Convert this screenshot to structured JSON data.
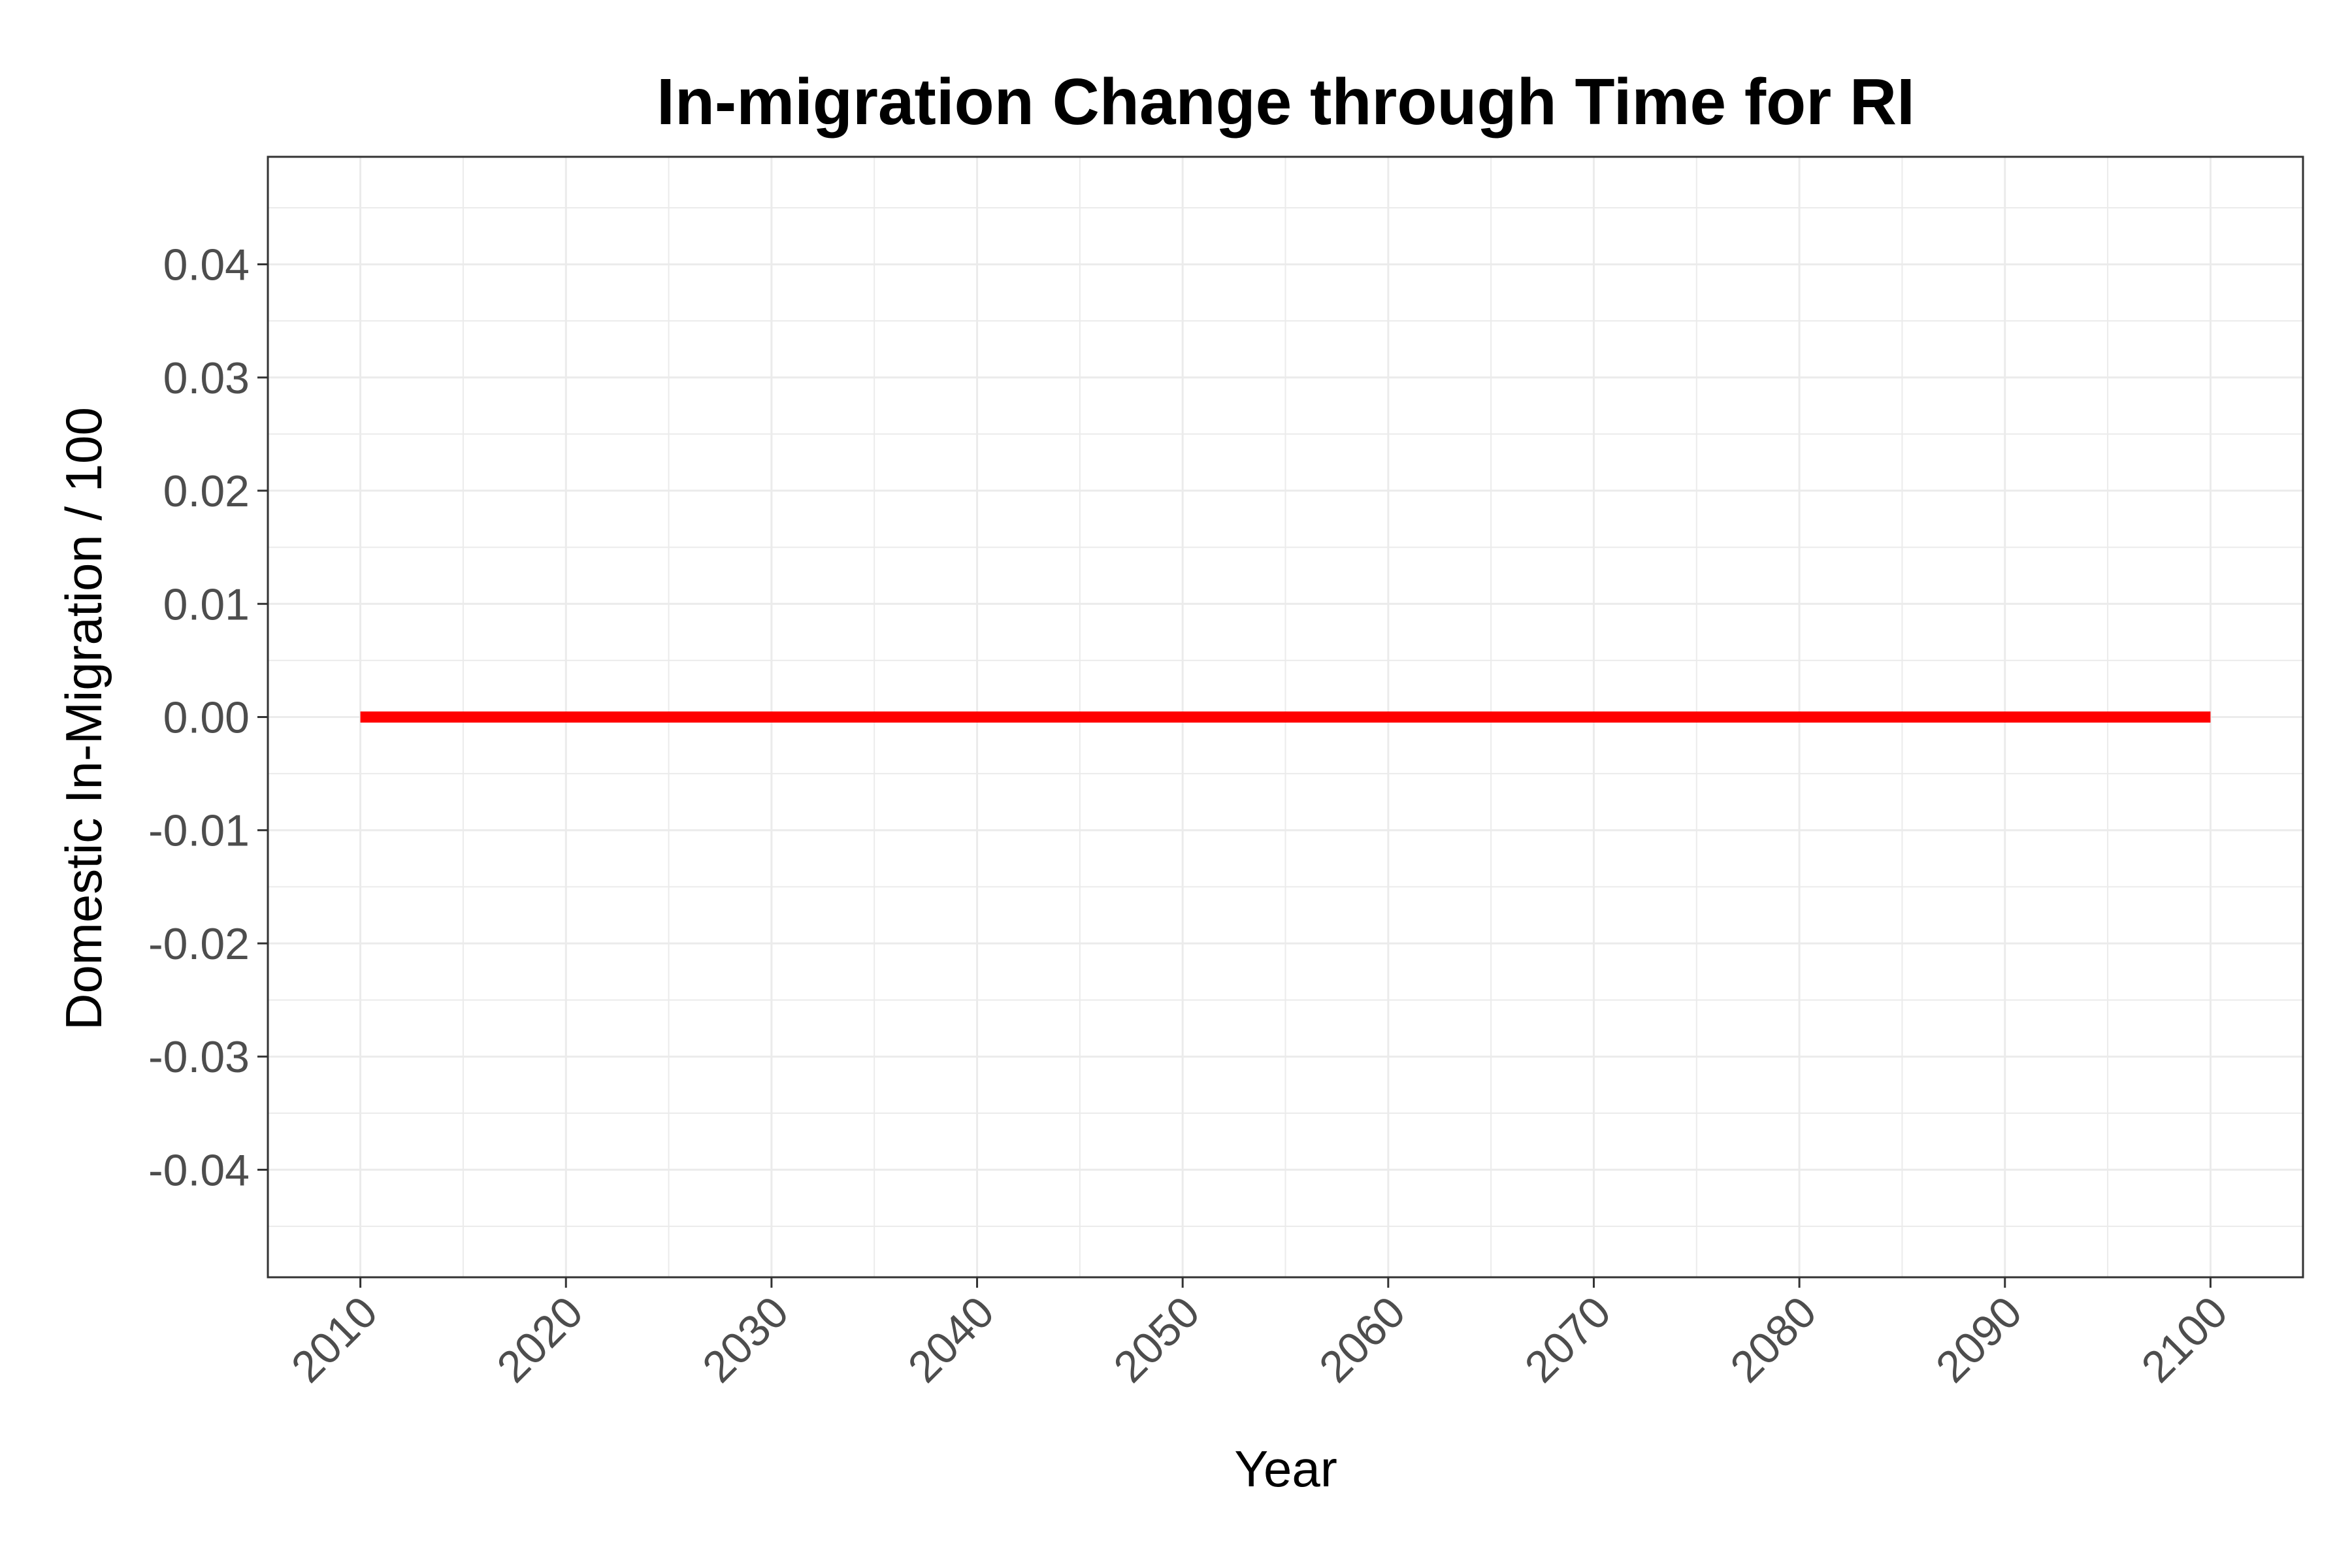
{
  "chart_data": {
    "type": "line",
    "title": "In-migration Change through Time for RI",
    "xlabel": "Year",
    "ylabel": "Domestic In-Migration / 100",
    "xlim": [
      2005.5,
      2104.5
    ],
    "ylim": [
      -0.0495,
      0.0495
    ],
    "x_ticks": [
      2010,
      2020,
      2030,
      2040,
      2050,
      2060,
      2070,
      2080,
      2090,
      2100
    ],
    "x_tick_labels": [
      "2010",
      "2020",
      "2030",
      "2040",
      "2050",
      "2060",
      "2070",
      "2080",
      "2090",
      "2100"
    ],
    "y_ticks": [
      -0.04,
      -0.03,
      -0.02,
      -0.01,
      0.0,
      0.01,
      0.02,
      0.03,
      0.04
    ],
    "y_tick_labels": [
      "-0.04",
      "-0.03",
      "-0.02",
      "-0.01",
      "0.00",
      "0.01",
      "0.02",
      "0.03",
      "0.04"
    ],
    "grid": true,
    "series": [
      {
        "color": "#ff0000",
        "x": [
          2010,
          2020,
          2030,
          2040,
          2050,
          2060,
          2070,
          2080,
          2090,
          2100
        ],
        "y": [
          0,
          0,
          0,
          0,
          0,
          0,
          0,
          0,
          0,
          0
        ]
      }
    ]
  },
  "colors": {
    "background": "#ffffff",
    "grid": "#ebebeb",
    "axis": "#333333",
    "tick_text": "#4d4d4d"
  }
}
